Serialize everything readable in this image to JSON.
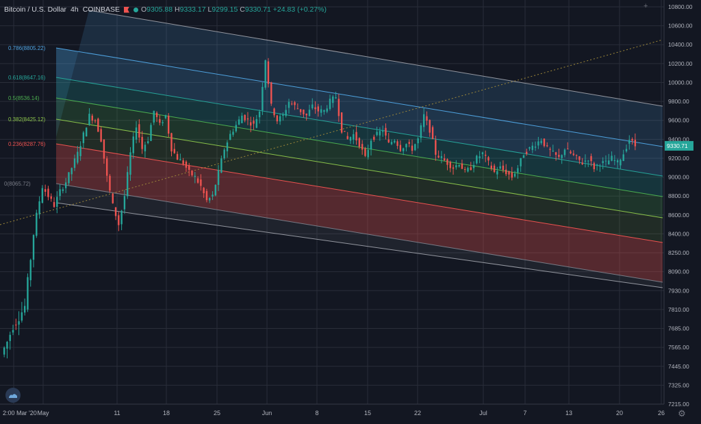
{
  "header": {
    "symbol": "Bitcoin / U.S. Dollar",
    "interval": "4h",
    "exchange": "COINBASE",
    "o_label": "O",
    "o_value": "9305.88",
    "h_label": "H",
    "h_value": "9333.17",
    "l_label": "L",
    "l_value": "9299.15",
    "c_label": "C",
    "c_value": "9330.71",
    "change": "+24.83 (+0.27%)"
  },
  "icons": {
    "flag": "flag-icon",
    "status": "market-status-dot-icon",
    "logo": "tradingview-logo-icon",
    "settings": "gear-icon"
  },
  "colors": {
    "background": "#131722",
    "up": "#26a69a",
    "down": "#ef5350",
    "price_badge": "#26a69a",
    "grid": "#2a2e39",
    "axis_text": "#b2b5be",
    "fib_0786": "#4fa3e0",
    "fib_0618": "#26a69a",
    "fib_05": "#4caf50",
    "fib_0382": "#8bc34a",
    "fib_0236": "#ef5350",
    "fib_0": "#787b86"
  },
  "chart_data": {
    "type": "candlestick",
    "title": "Bitcoin / U.S. Dollar · 4h · COINBASE",
    "last_price": 9330.71,
    "y_ticks": [
      10800,
      10600,
      10400,
      10200,
      10000,
      9800,
      9600,
      9400,
      9200,
      9000,
      8800,
      8600,
      8400,
      8250,
      8090,
      7930,
      7810,
      7685,
      7565,
      7445,
      7325,
      7215
    ],
    "y_tick_labels": [
      "10800.00",
      "10600.00",
      "10400.00",
      "10200.00",
      "10000.00",
      "9800.00",
      "9600.00",
      "9400.00",
      "9200.00",
      "9000.00",
      "8800.00",
      "8600.00",
      "8400.00",
      "8250.00",
      "8090.00",
      "7930.00",
      "7810.00",
      "7685.00",
      "7565.00",
      "7445.00",
      "7325.00",
      "7215.00"
    ],
    "x_ticks": [
      "2:00",
      "Mar '20",
      "May",
      "11",
      "18",
      "25",
      "Jun",
      "8",
      "15",
      "22",
      "Jul",
      "7",
      "13",
      "20",
      "26"
    ],
    "fib_channel": [
      {
        "level": "0.786",
        "price": 8805.22,
        "label": "0.786(8805.22)"
      },
      {
        "level": "0.618",
        "price": 8647.16,
        "label": "0.618(8647.16)"
      },
      {
        "level": "0.5",
        "price": 8536.14,
        "label": "0.5(8536.14)"
      },
      {
        "level": "0.382",
        "price": 8425.12,
        "label": "0.382(8425.12)"
      },
      {
        "level": "0.236",
        "price": 8287.76,
        "label": "0.236(8287.76)"
      },
      {
        "level": "0",
        "price": 8065.72,
        "label": "0(8065.72)"
      }
    ],
    "price_path": [
      [
        0,
        7520
      ],
      [
        2,
        7600
      ],
      [
        4,
        7700
      ],
      [
        6,
        7760
      ],
      [
        7,
        7830
      ],
      [
        8,
        8200
      ],
      [
        9,
        8600
      ],
      [
        10,
        8900
      ],
      [
        11,
        8800
      ],
      [
        13,
        8700
      ],
      [
        14,
        8850
      ],
      [
        16,
        8950
      ],
      [
        18,
        9100
      ],
      [
        19,
        9250
      ],
      [
        20,
        9450
      ],
      [
        21,
        9650
      ],
      [
        22,
        9600
      ],
      [
        23,
        9400
      ],
      [
        24,
        9000
      ],
      [
        25,
        8700
      ],
      [
        26,
        8500
      ],
      [
        27,
        8800
      ],
      [
        28,
        9250
      ],
      [
        29,
        9550
      ],
      [
        30,
        9300
      ],
      [
        31,
        9400
      ],
      [
        32,
        9700
      ],
      [
        33,
        9550
      ],
      [
        34,
        9650
      ],
      [
        35,
        9300
      ],
      [
        36,
        9200
      ],
      [
        37,
        9150
      ],
      [
        38,
        9050
      ],
      [
        39,
        9000
      ],
      [
        40,
        8900
      ],
      [
        41,
        8750
      ],
      [
        42,
        8800
      ],
      [
        43,
        9050
      ],
      [
        44,
        9300
      ],
      [
        45,
        9450
      ],
      [
        46,
        9550
      ],
      [
        47,
        9650
      ],
      [
        48,
        9600
      ],
      [
        49,
        9550
      ],
      [
        50,
        9700
      ],
      [
        51,
        10250
      ],
      [
        52,
        9750
      ],
      [
        53,
        9600
      ],
      [
        54,
        9650
      ],
      [
        55,
        9800
      ],
      [
        56,
        9750
      ],
      [
        57,
        9700
      ],
      [
        58,
        9650
      ],
      [
        59,
        9750
      ],
      [
        60,
        9700
      ],
      [
        61,
        9700
      ],
      [
        62,
        9800
      ],
      [
        63,
        9850
      ],
      [
        64,
        9500
      ],
      [
        65,
        9400
      ],
      [
        66,
        9450
      ],
      [
        67,
        9350
      ],
      [
        68,
        9200
      ],
      [
        69,
        9400
      ],
      [
        70,
        9450
      ],
      [
        71,
        9500
      ],
      [
        72,
        9350
      ],
      [
        73,
        9400
      ],
      [
        74,
        9300
      ],
      [
        75,
        9350
      ],
      [
        76,
        9300
      ],
      [
        77,
        9400
      ],
      [
        78,
        9650
      ],
      [
        79,
        9500
      ],
      [
        80,
        9250
      ],
      [
        81,
        9200
      ],
      [
        82,
        9150
      ],
      [
        83,
        9100
      ],
      [
        84,
        9150
      ],
      [
        85,
        9050
      ],
      [
        86,
        9100
      ],
      [
        87,
        9200
      ],
      [
        88,
        9250
      ],
      [
        89,
        9150
      ],
      [
        90,
        9050
      ],
      [
        91,
        9100
      ],
      [
        92,
        9050
      ],
      [
        93,
        9000
      ],
      [
        94,
        9100
      ],
      [
        95,
        9250
      ],
      [
        96,
        9300
      ],
      [
        97,
        9350
      ],
      [
        98,
        9400
      ],
      [
        99,
        9300
      ],
      [
        100,
        9250
      ],
      [
        101,
        9200
      ],
      [
        102,
        9300
      ],
      [
        103,
        9250
      ],
      [
        104,
        9200
      ],
      [
        105,
        9150
      ],
      [
        106,
        9200
      ],
      [
        107,
        9100
      ],
      [
        108,
        9150
      ],
      [
        109,
        9150
      ],
      [
        110,
        9200
      ],
      [
        111,
        9150
      ],
      [
        112,
        9250
      ],
      [
        113,
        9400
      ],
      [
        114,
        9330
      ]
    ]
  }
}
